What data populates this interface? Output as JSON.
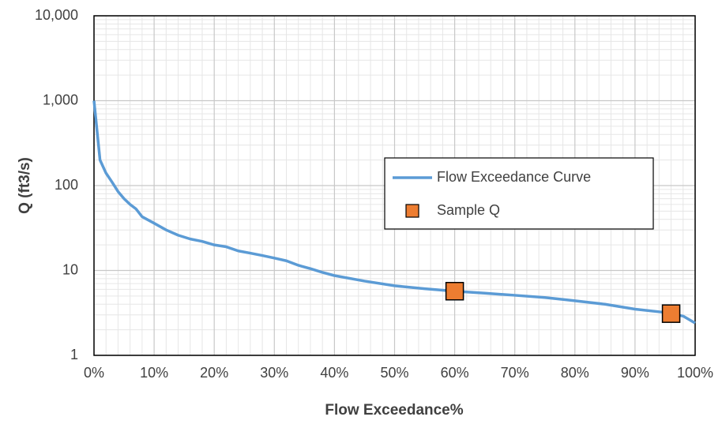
{
  "chart_data": {
    "type": "line",
    "x_label": "Flow Exceedance%",
    "y_label": "Q (ft3/s)",
    "series": [
      {
        "name": "Flow Exceedance Curve",
        "type": "line",
        "color": "#5b9bd5",
        "x": [
          0,
          1,
          2,
          3,
          4,
          5,
          6,
          7,
          8,
          10,
          12,
          14,
          16,
          18,
          20,
          22,
          24,
          26,
          28,
          30,
          32,
          34,
          36,
          38,
          40,
          45,
          50,
          55,
          60,
          65,
          70,
          75,
          80,
          85,
          90,
          95,
          98,
          100
        ],
        "values": [
          1000,
          200,
          140,
          110,
          85,
          70,
          60,
          53,
          43,
          36,
          30,
          26,
          23.5,
          22,
          20,
          19,
          17,
          16,
          15,
          14,
          13,
          11.5,
          10.5,
          9.5,
          8.7,
          7.5,
          6.6,
          6.1,
          5.7,
          5.4,
          5.1,
          4.8,
          4.4,
          4.0,
          3.5,
          3.2,
          2.9,
          2.4
        ]
      },
      {
        "name": "Sample Q",
        "type": "scatter",
        "color": "#ed7d31",
        "x": [
          60,
          96
        ],
        "values": [
          5.7,
          3.1
        ]
      }
    ],
    "xlim": [
      0,
      100
    ],
    "xticks": [
      {
        "value": 0,
        "label": "0%"
      },
      {
        "value": 10,
        "label": "10%"
      },
      {
        "value": 20,
        "label": "20%"
      },
      {
        "value": 30,
        "label": "30%"
      },
      {
        "value": 40,
        "label": "40%"
      },
      {
        "value": 50,
        "label": "50%"
      },
      {
        "value": 60,
        "label": "60%"
      },
      {
        "value": 70,
        "label": "70%"
      },
      {
        "value": 80,
        "label": "80%"
      },
      {
        "value": 90,
        "label": "90%"
      },
      {
        "value": 100,
        "label": "100%"
      }
    ],
    "ylim": [
      1,
      10000
    ],
    "yticks": [
      1,
      10,
      100,
      {
        "value": 1000,
        "label": "1,000"
      },
      {
        "value": 10000,
        "label": "10,000"
      }
    ],
    "y_scale": "log",
    "grid": true,
    "minor_grid": true,
    "legend": "center right"
  }
}
